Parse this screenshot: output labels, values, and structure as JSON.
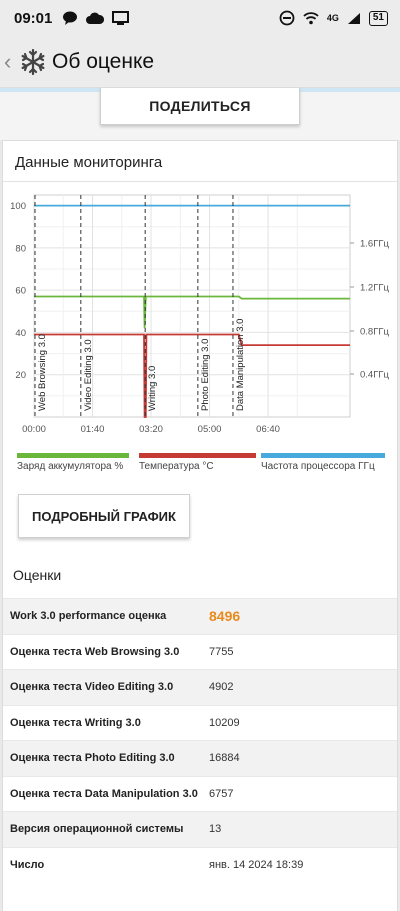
{
  "status_bar": {
    "time": "09:01",
    "network": "4G",
    "battery": "51"
  },
  "header": {
    "title": "Об оценке"
  },
  "share_button": "ПОДЕЛИТЬСЯ",
  "monitoring": {
    "title": "Данные мониторинга"
  },
  "chart_data": {
    "type": "line",
    "x_ticks": [
      "00:00",
      "01:40",
      "03:20",
      "05:00",
      "06:40"
    ],
    "y_left_ticks": [
      20,
      40,
      60,
      80,
      100
    ],
    "y_left_range": [
      0,
      105
    ],
    "y_right_ticks": [
      "0.4ГГц",
      "0.8ГГц",
      "1.2ГГц",
      "1.6ГГц"
    ],
    "grid": true,
    "test_markers": [
      {
        "label": "Web Browsing 3.0",
        "at": 0
      },
      {
        "label": "Video Editing 3.0",
        "at": 80
      },
      {
        "label": "Writing 3.0",
        "at": 190
      },
      {
        "label": "Photo Editing 3.0",
        "at": 280
      },
      {
        "label": "Data Manipulation 3.0",
        "at": 340
      }
    ],
    "series": [
      {
        "name": "Заряд аккумулятора %",
        "color": "#6ab73c",
        "points": [
          [
            0,
            57
          ],
          [
            188,
            57
          ],
          [
            189,
            42
          ],
          [
            191,
            57
          ],
          [
            350,
            57
          ],
          [
            355,
            56
          ],
          [
            540,
            56
          ]
        ]
      },
      {
        "name": "Температура °C",
        "color": "#c63a35",
        "points": [
          [
            0,
            39
          ],
          [
            188,
            39
          ],
          [
            189,
            0
          ],
          [
            191,
            0
          ],
          [
            192,
            39
          ],
          [
            350,
            39
          ],
          [
            355,
            34
          ],
          [
            540,
            34
          ]
        ]
      },
      {
        "name": "Частота процессора ГГц",
        "color": "#47a9dc",
        "points": [
          [
            0,
            100
          ],
          [
            540,
            100
          ]
        ]
      }
    ]
  },
  "details_button": "ПОДРОБНЫЙ ГРАФИК",
  "scores": {
    "title": "Оценки",
    "rows": [
      {
        "label": "Work 3.0 performance оценка",
        "value": "8496",
        "highlight": true
      },
      {
        "label": "Оценка теста Web Browsing 3.0",
        "value": "7755"
      },
      {
        "label": "Оценка теста Video Editing 3.0",
        "value": "4902"
      },
      {
        "label": "Оценка теста Writing 3.0",
        "value": "10209"
      },
      {
        "label": "Оценка теста Photo Editing 3.0",
        "value": "16884"
      },
      {
        "label": "Оценка теста Data Manipulation 3.0",
        "value": "6757"
      },
      {
        "label": "Версия операционной системы",
        "value": "13"
      },
      {
        "label": "Число",
        "value": "янв. 14 2024 18:39"
      }
    ]
  }
}
